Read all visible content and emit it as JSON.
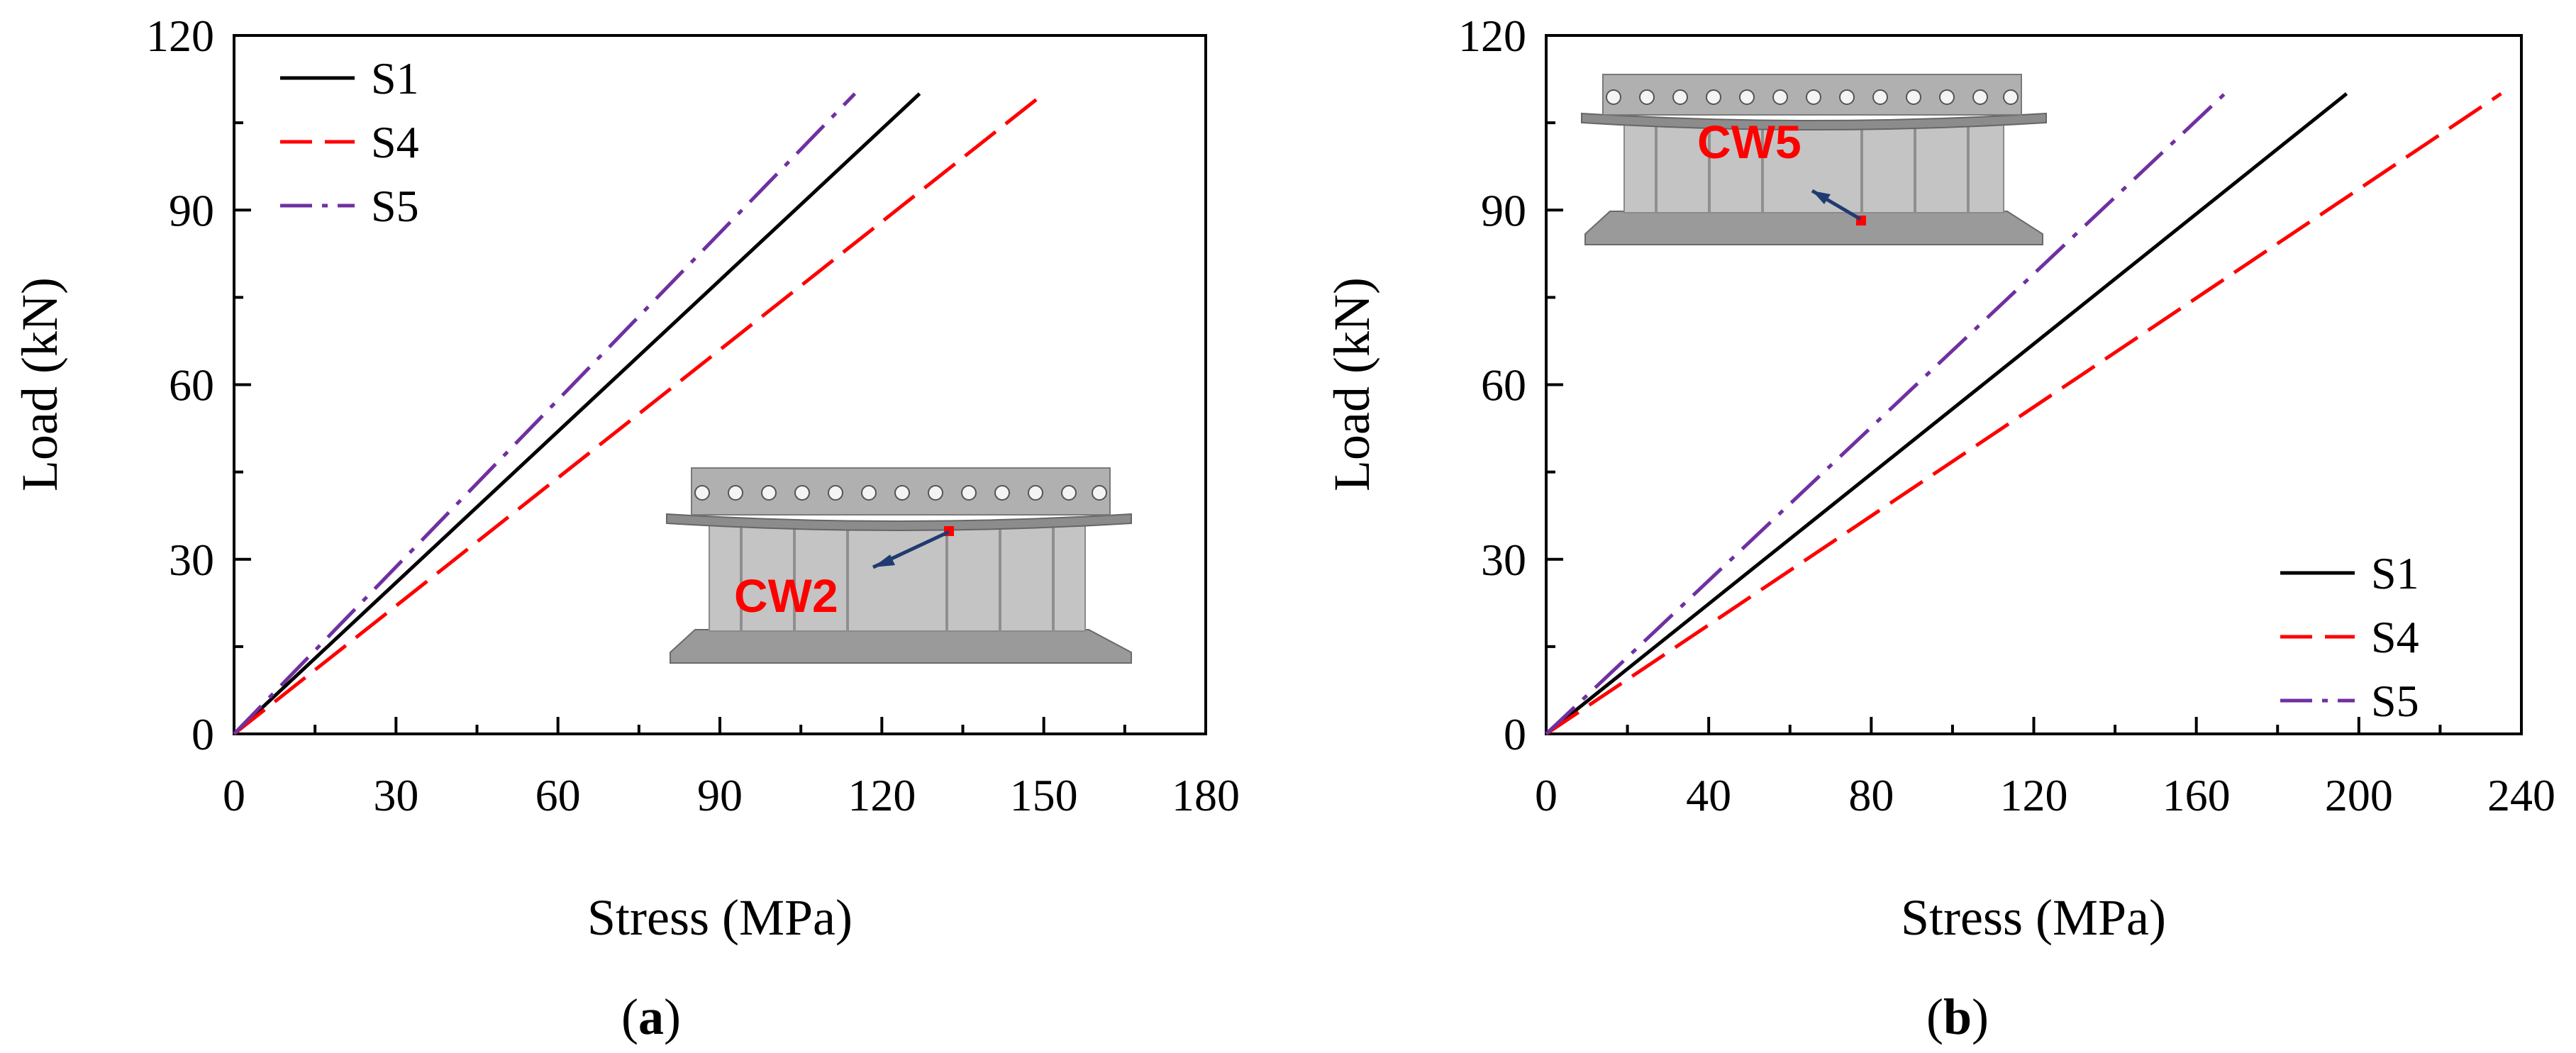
{
  "figure": {
    "panel_a_label": "a",
    "panel_b_label": "b"
  },
  "chart_data": [
    {
      "panel": "a",
      "type": "line",
      "title": "",
      "xlabel": "Stress (MPa)",
      "ylabel": "Load (kN)",
      "xlim": [
        0,
        180
      ],
      "ylim": [
        0,
        120
      ],
      "xticks": [
        0,
        30,
        60,
        90,
        120,
        150,
        180
      ],
      "yticks": [
        0,
        30,
        60,
        90,
        120
      ],
      "legend_position": "top-left",
      "inset_label": "CW2",
      "series": [
        {
          "name": "S1",
          "color": "#000000",
          "style": "solid",
          "x": [
            0,
            127
          ],
          "y": [
            0,
            110
          ]
        },
        {
          "name": "S4",
          "color": "#ff0000",
          "style": "dashed",
          "x": [
            0,
            150
          ],
          "y": [
            0,
            110
          ]
        },
        {
          "name": "S5",
          "color": "#7030a0",
          "style": "dash-dot",
          "x": [
            0,
            115
          ],
          "y": [
            0,
            110
          ]
        }
      ]
    },
    {
      "panel": "b",
      "type": "line",
      "title": "",
      "xlabel": "Stress (MPa)",
      "ylabel": "Load (kN)",
      "xlim": [
        0,
        240
      ],
      "ylim": [
        0,
        120
      ],
      "xticks": [
        0,
        40,
        80,
        120,
        160,
        200,
        240
      ],
      "yticks": [
        0,
        30,
        60,
        90,
        120
      ],
      "legend_position": "bottom-right",
      "inset_label": "CW5",
      "series": [
        {
          "name": "S1",
          "color": "#000000",
          "style": "solid",
          "x": [
            0,
            197
          ],
          "y": [
            0,
            110
          ]
        },
        {
          "name": "S4",
          "color": "#ff0000",
          "style": "dashed",
          "x": [
            0,
            235
          ],
          "y": [
            0,
            110
          ]
        },
        {
          "name": "S5",
          "color": "#7030a0",
          "style": "dash-dot",
          "x": [
            0,
            167
          ],
          "y": [
            0,
            110
          ]
        }
      ]
    }
  ]
}
